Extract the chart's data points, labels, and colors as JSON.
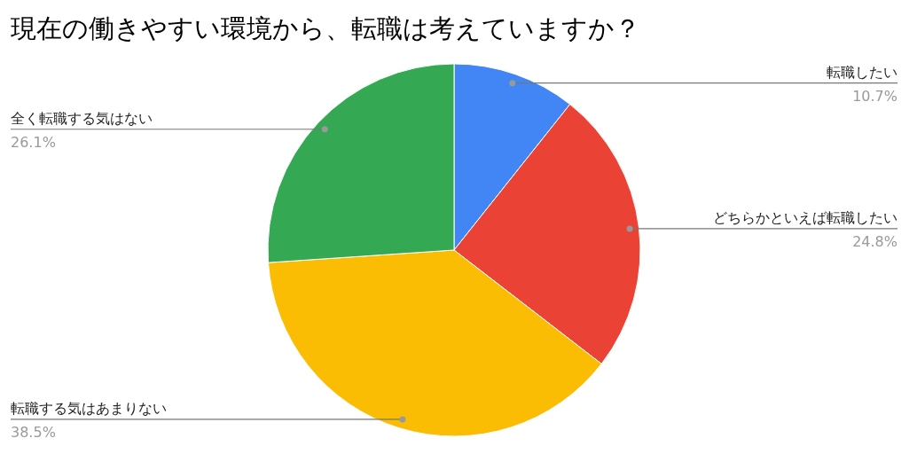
{
  "chart_data": {
    "type": "pie",
    "title": "現在の働きやすい環境から、転職は考えていますか？",
    "categories": [
      "転職したい",
      "どちらかといえば転職したい",
      "転職する気はあまりない",
      "全く転職する気はない"
    ],
    "values": [
      10.7,
      24.8,
      38.5,
      26.1
    ],
    "value_labels": [
      "10.7%",
      "24.8%",
      "38.5%",
      "26.1%"
    ],
    "colors": [
      "#4285f4",
      "#ea4335",
      "#fbbc04",
      "#34a853"
    ],
    "legend": false
  }
}
